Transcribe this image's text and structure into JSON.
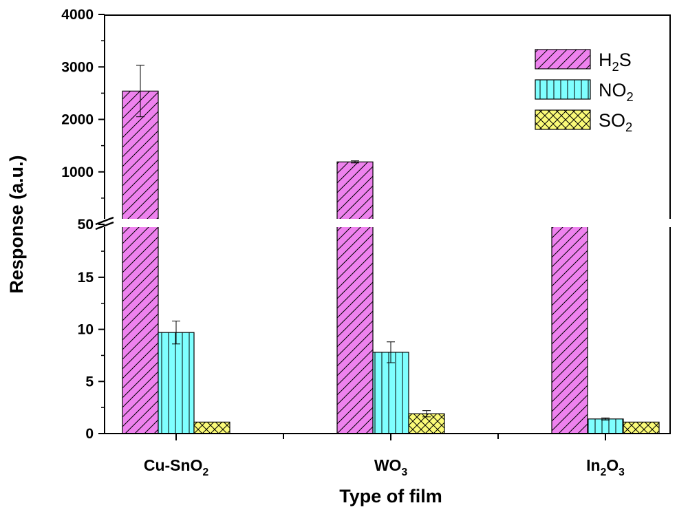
{
  "chart_data": {
    "type": "bar",
    "xlabel": "Type of film",
    "ylabel": "Response (a.u.)",
    "axis_break": {
      "lower": [
        0,
        20
      ],
      "upper": [
        0,
        4000
      ],
      "break_tick": "50"
    },
    "yticks_lower": [
      "0",
      "5",
      "10",
      "15"
    ],
    "yticks_upper": [
      "1000",
      "2000",
      "3000",
      "4000"
    ],
    "categories": [
      {
        "base": "Cu-SnO",
        "sub": "2",
        "tail": ""
      },
      {
        "base": "WO",
        "sub": "3",
        "tail": ""
      },
      {
        "base": "In",
        "sub": "2",
        "tail": "O",
        "sub2": "3"
      }
    ],
    "series": [
      {
        "name": "H",
        "name_sub": "2",
        "name_tail": "S",
        "color": "#ee82ee",
        "hatch": "diagonal",
        "values": [
          2540,
          1190,
          52
        ],
        "errors": [
          490,
          20,
          2
        ]
      },
      {
        "name": "NO",
        "name_sub": "2",
        "name_tail": "",
        "color": "#7fffff",
        "hatch": "vertical",
        "values": [
          9.7,
          7.8,
          1.4
        ],
        "errors": [
          1.1,
          1.0,
          0.1
        ]
      },
      {
        "name": "SO",
        "name_sub": "2",
        "name_tail": "",
        "color": "#fafa78",
        "hatch": "crosshatch",
        "values": [
          1.1,
          1.9,
          1.1
        ],
        "errors": [
          0.0,
          0.3,
          0.0
        ]
      }
    ],
    "legend_position": "top-right"
  }
}
